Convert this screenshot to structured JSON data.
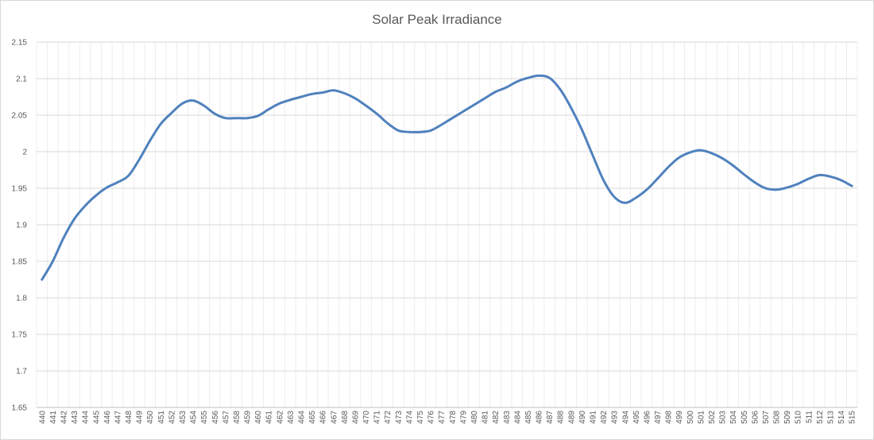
{
  "chart_data": {
    "type": "line",
    "title": "Solar Peak Irradiance",
    "xlabel": "",
    "ylabel": "",
    "ylim": [
      1.65,
      2.15
    ],
    "y_ticks": [
      "1.65",
      "1.7",
      "1.75",
      "1.8",
      "1.85",
      "1.9",
      "1.95",
      "2",
      "2.05",
      "2.1",
      "2.15"
    ],
    "grid": true,
    "legend": "none",
    "colors": {
      "line": "#4f81bd",
      "grid": "#d9d9d9",
      "minor_grid": "#ededed",
      "text": "#595959"
    },
    "categories": [
      "440",
      "441",
      "442",
      "443",
      "444",
      "445",
      "446",
      "447",
      "448",
      "449",
      "450",
      "451",
      "452",
      "453",
      "454",
      "455",
      "456",
      "457",
      "458",
      "459",
      "460",
      "461",
      "462",
      "463",
      "464",
      "465",
      "466",
      "467",
      "468",
      "469",
      "470",
      "471",
      "472",
      "473",
      "474",
      "475",
      "476",
      "477",
      "478",
      "479",
      "480",
      "481",
      "482",
      "483",
      "484",
      "485",
      "486",
      "487",
      "488",
      "489",
      "490",
      "491",
      "492",
      "493",
      "494",
      "495",
      "496",
      "497",
      "498",
      "499",
      "500",
      "501",
      "502",
      "503",
      "504",
      "505",
      "506",
      "507",
      "508",
      "509",
      "510",
      "511",
      "512",
      "513",
      "514",
      "515"
    ],
    "series": [
      {
        "values": [
          1.825,
          1.85,
          1.882,
          1.908,
          1.926,
          1.94,
          1.951,
          1.958,
          1.967,
          1.989,
          2.015,
          2.038,
          2.053,
          2.066,
          2.07,
          2.063,
          2.052,
          2.046,
          2.046,
          2.046,
          2.049,
          2.058,
          2.066,
          2.071,
          2.075,
          2.079,
          2.081,
          2.084,
          2.08,
          2.073,
          2.063,
          2.052,
          2.039,
          2.029,
          2.027,
          2.027,
          2.029,
          2.037,
          2.046,
          2.055,
          2.064,
          2.073,
          2.082,
          2.088,
          2.096,
          2.101,
          2.104,
          2.101,
          2.085,
          2.06,
          2.03,
          1.995,
          1.961,
          1.938,
          1.93,
          1.937,
          1.948,
          1.963,
          1.979,
          1.992,
          1.999,
          2.002,
          1.998,
          1.991,
          1.981,
          1.969,
          1.958,
          1.95,
          1.948,
          1.951,
          1.956,
          1.963,
          1.968,
          1.966,
          1.961,
          1.953
        ]
      }
    ]
  }
}
